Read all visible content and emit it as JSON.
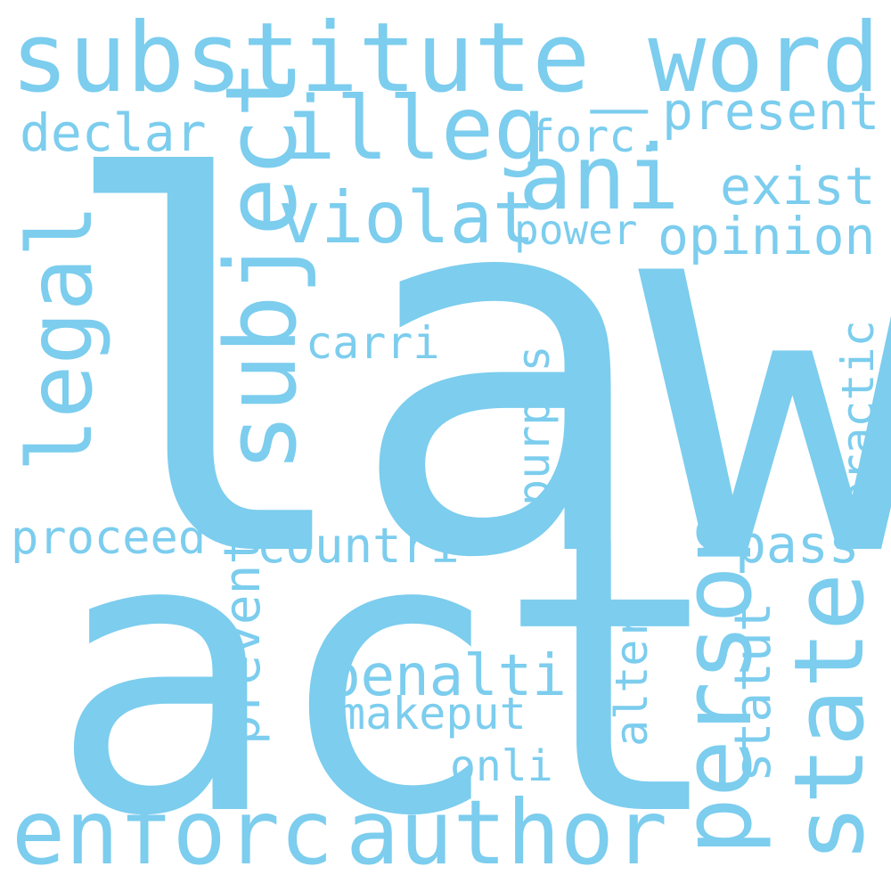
{
  "color": "#7ccdee",
  "words": {
    "law": "law",
    "act": "act",
    "substitute_word": "substitute_word",
    "subject": "subject",
    "illeg": "illeg",
    "ani": "ani",
    "declar": "declar",
    "forc": "forc.",
    "present": "present",
    "exist": "exist",
    "violat": "violat",
    "power": "power",
    "opinion": "opinion",
    "legal": "legal",
    "carri": "carri",
    "practic": "practic",
    "purpos": "purpos",
    "person": "person",
    "proceed": "proceed",
    "countri": "countri",
    "pass": "pass",
    "prevent": "prevent",
    "statut": "statut",
    "penalti": "penalti",
    "makeput": "makeput",
    "alter": "alter",
    "onli": "onli",
    "state": "state",
    "enforc": "enforc",
    "author": "author"
  }
}
